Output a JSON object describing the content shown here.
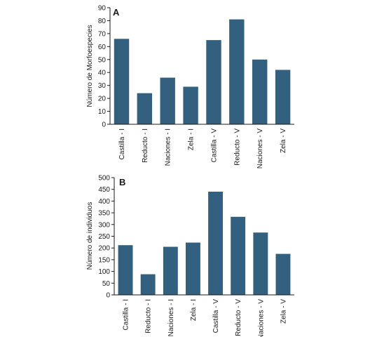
{
  "chart_data": [
    {
      "type": "bar",
      "panel_label": "A",
      "categories": [
        "Castilla - I",
        "Reducto - I",
        "Naciones - I",
        "Zela - I",
        "Castilla - V",
        "Reducto - V",
        "Naciones - V",
        "Zela - V"
      ],
      "values": [
        66,
        24,
        36,
        29,
        65,
        81,
        50,
        42
      ],
      "ylabel": "Número de Morfoespecies",
      "ylim": [
        0,
        90
      ],
      "yticks": [
        0,
        10,
        20,
        30,
        40,
        50,
        60,
        70,
        80,
        90
      ],
      "color": "#33607f",
      "grid": false
    },
    {
      "type": "bar",
      "panel_label": "B",
      "categories": [
        "Castilla - I",
        "Reducto - I",
        "Naciones - I",
        "Zela - I",
        "Castilla - V",
        "Reducto - V",
        "Naciones - V",
        "Zela - V"
      ],
      "values": [
        212,
        88,
        205,
        223,
        440,
        333,
        266,
        175
      ],
      "ylabel": "Número de individuos",
      "ylim": [
        0,
        500
      ],
      "yticks": [
        0,
        50,
        100,
        150,
        200,
        250,
        300,
        350,
        400,
        450,
        500
      ],
      "color": "#33607f",
      "grid": false
    }
  ]
}
